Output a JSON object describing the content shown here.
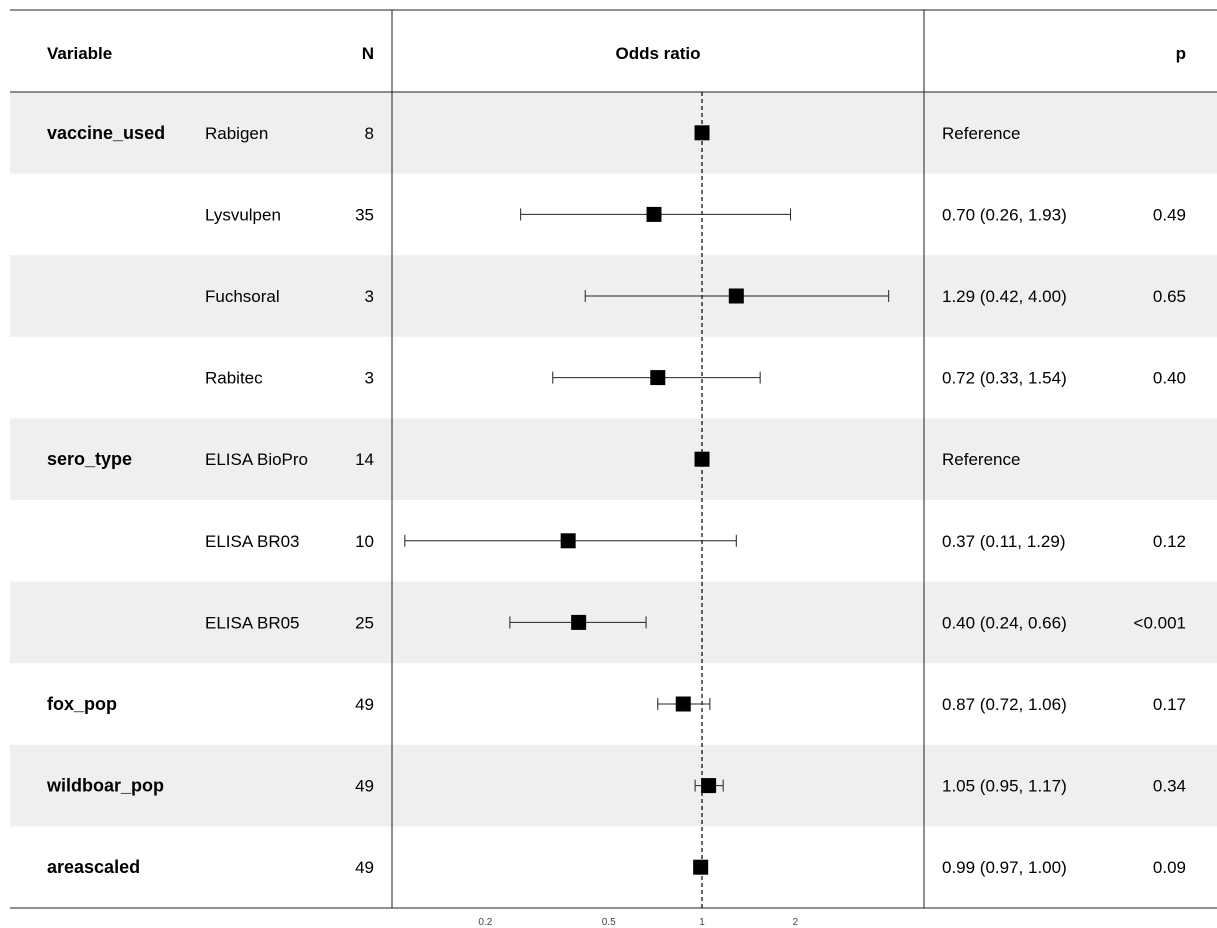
{
  "headers": {
    "variable": "Variable",
    "n": "N",
    "estimate": "Odds ratio",
    "p": "p"
  },
  "colors": {
    "stripe": "#efefef",
    "mark": "#000000",
    "line": "#222222"
  },
  "chart_data": {
    "type": "forest",
    "xscale": "log",
    "reference_line": 1,
    "xlim": [
      0.1,
      5.2
    ],
    "x_ticks": [
      {
        "value": 0.2,
        "label": "0.2"
      },
      {
        "value": 0.5,
        "label": "0.5"
      },
      {
        "value": 1,
        "label": "1"
      },
      {
        "value": 2,
        "label": "2"
      }
    ],
    "rows": [
      {
        "variable": "vaccine_used",
        "level": "Rabigen",
        "n": "8",
        "or": 1.0,
        "lower": null,
        "upper": null,
        "ci_text": "Reference",
        "p": ""
      },
      {
        "variable": "",
        "level": "Lysvulpen",
        "n": "35",
        "or": 0.7,
        "lower": 0.26,
        "upper": 1.93,
        "ci_text": "0.70 (0.26, 1.93)",
        "p": "0.49"
      },
      {
        "variable": "",
        "level": "Fuchsoral",
        "n": "3",
        "or": 1.29,
        "lower": 0.42,
        "upper": 4.0,
        "ci_text": "1.29 (0.42, 4.00)",
        "p": "0.65"
      },
      {
        "variable": "",
        "level": "Rabitec",
        "n": "3",
        "or": 0.72,
        "lower": 0.33,
        "upper": 1.54,
        "ci_text": "0.72 (0.33, 1.54)",
        "p": "0.40"
      },
      {
        "variable": "sero_type",
        "level": "ELISA BioPro",
        "n": "14",
        "or": 1.0,
        "lower": null,
        "upper": null,
        "ci_text": "Reference",
        "p": ""
      },
      {
        "variable": "",
        "level": "ELISA BR03",
        "n": "10",
        "or": 0.37,
        "lower": 0.11,
        "upper": 1.29,
        "ci_text": "0.37 (0.11, 1.29)",
        "p": "0.12"
      },
      {
        "variable": "",
        "level": "ELISA BR05",
        "n": "25",
        "or": 0.4,
        "lower": 0.24,
        "upper": 0.66,
        "ci_text": "0.40 (0.24, 0.66)",
        "p": "<0.001"
      },
      {
        "variable": "fox_pop",
        "level": "",
        "n": "49",
        "or": 0.87,
        "lower": 0.72,
        "upper": 1.06,
        "ci_text": "0.87 (0.72, 1.06)",
        "p": "0.17"
      },
      {
        "variable": "wildboar_pop",
        "level": "",
        "n": "49",
        "or": 1.05,
        "lower": 0.95,
        "upper": 1.17,
        "ci_text": "1.05 (0.95, 1.17)",
        "p": "0.34"
      },
      {
        "variable": "areascaled",
        "level": "",
        "n": "49",
        "or": 0.99,
        "lower": 0.97,
        "upper": 1.0,
        "ci_text": "0.99 (0.97, 1.00)",
        "p": "0.09"
      }
    ]
  }
}
